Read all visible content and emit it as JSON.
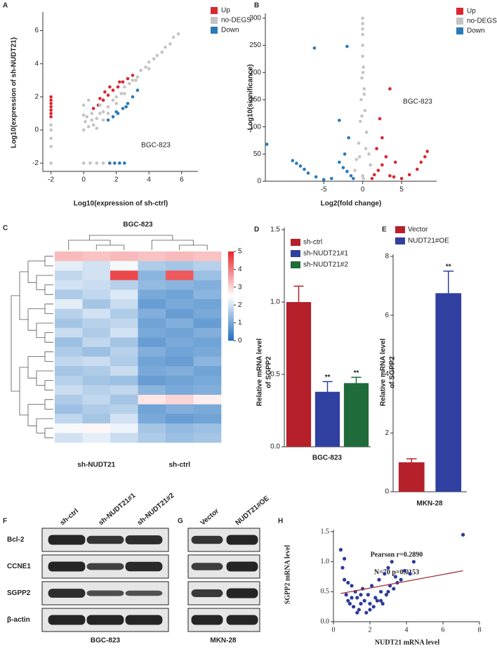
{
  "chart_data": [
    {
      "type": "scatter",
      "panel": "A",
      "xlabel": "Log10(expression of sh-ctrl)",
      "ylabel": "Log10(expression of sh-NUDT21)",
      "annotations": [
        "BGC-823"
      ],
      "xlim": [
        -2.5,
        7
      ],
      "ylim": [
        -2.5,
        7
      ],
      "xticks": [
        -2,
        0,
        2,
        4,
        6
      ],
      "yticks": [
        -2,
        0,
        2,
        4,
        6
      ],
      "series": [
        {
          "name": "Up",
          "color": "#d9272e",
          "x": [
            -2,
            -2,
            -2,
            -2,
            -2,
            -2,
            -2,
            0.6,
            0.9,
            1.2,
            1.5,
            1.8,
            2.1,
            2.4,
            2.7,
            3.0,
            1.0,
            1.6,
            2.2,
            1.3
          ],
          "values": [
            0.8,
            1.0,
            1.2,
            1.4,
            1.6,
            1.8,
            2.0,
            1.3,
            1.5,
            1.8,
            2.1,
            2.4,
            2.6,
            2.9,
            3.1,
            3.3,
            1.9,
            2.6,
            2.9,
            2.3
          ]
        },
        {
          "name": "no-DEGS",
          "color": "#c4c4c4",
          "x": [
            0,
            0.3,
            0.5,
            0.8,
            1,
            1.2,
            1.5,
            1.8,
            2,
            2.3,
            2.5,
            2.8,
            3,
            3.3,
            3.5,
            3.8,
            4,
            4.3,
            4.5,
            4.8,
            5,
            5.3,
            5.5,
            5.8,
            0.2,
            0.5,
            1,
            1.5,
            0.8,
            0.1,
            0,
            0,
            0.3,
            0.6,
            1.2,
            2.0,
            2.5,
            3.2,
            4.0,
            -2,
            -2,
            -2,
            -2,
            -2,
            0,
            0.4,
            0.8,
            1.2,
            1.6
          ],
          "values": [
            0,
            0.2,
            0.6,
            0.7,
            1,
            1.1,
            1.4,
            1.8,
            2,
            2.2,
            2.6,
            2.8,
            3,
            3.2,
            3.6,
            3.8,
            4.1,
            4.3,
            4.5,
            4.7,
            5,
            5.2,
            5.6,
            5.8,
            0.8,
            1.0,
            1.5,
            1.0,
            0.1,
            0.5,
            0.9,
            1.5,
            1.8,
            0.3,
            0.6,
            1.6,
            2.2,
            3.0,
            3.7,
            -2,
            -1,
            0,
            0.3,
            -0.5,
            -2,
            -2,
            -2,
            -2,
            -2
          ]
        },
        {
          "name": "Down",
          "color": "#2a7ab8",
          "x": [
            1.5,
            1.8,
            2.1,
            2.4,
            2.7,
            3.0,
            3.3,
            2.0,
            2.6,
            1.6,
            1.9,
            2.2,
            2.5
          ],
          "values": [
            0.6,
            0.8,
            1.0,
            1.3,
            1.6,
            2.0,
            2.4,
            1.1,
            1.4,
            -2,
            -2,
            -2,
            -2
          ]
        }
      ]
    },
    {
      "type": "scatter",
      "panel": "B",
      "xlabel": "Log2(fold change)",
      "ylabel": "-Log10(significance)",
      "annotations": [
        "BGC-823"
      ],
      "xlim": [
        -12.5,
        9.5
      ],
      "ylim": [
        0,
        305
      ],
      "xticks": [
        -5,
        0,
        5
      ],
      "yticks": [
        0,
        50,
        100,
        150,
        200,
        250,
        300
      ],
      "series": [
        {
          "name": "Up",
          "color": "#d9272e",
          "x": [
            1.2,
            1.5,
            2,
            2.5,
            3,
            3.5,
            4,
            5,
            6,
            7,
            7.5,
            8,
            8.3,
            2.2,
            3.5,
            2.5,
            1.8,
            4.2
          ],
          "values": [
            5,
            12,
            20,
            30,
            45,
            10,
            8,
            5,
            12,
            22,
            35,
            45,
            55,
            115,
            170,
            80,
            60,
            35
          ]
        },
        {
          "name": "no-DEGS",
          "color": "#c4c4c4",
          "x": [
            0,
            0,
            0,
            0,
            0,
            0.1,
            -0.1,
            0.2,
            -0.2,
            0.3,
            -0.3,
            0.5,
            -0.5,
            0.8,
            -0.8,
            1,
            -1,
            0,
            0.1,
            -0.1,
            0.2,
            0.4,
            -0.4,
            0,
            0.05
          ],
          "values": [
            300,
            290,
            270,
            250,
            230,
            210,
            190,
            170,
            150,
            130,
            110,
            90,
            70,
            50,
            40,
            30,
            20,
            10,
            5,
            120,
            160,
            60,
            45,
            280,
            200
          ]
        },
        {
          "name": "Down",
          "color": "#2a7ab8",
          "x": [
            -1.2,
            -1.5,
            -2,
            -2.5,
            -3,
            -4,
            -5,
            -6,
            -7,
            -7.5,
            -8,
            -8.5,
            -9,
            -6.2,
            -2,
            -3,
            -12.3,
            -2.3,
            -1.8
          ],
          "values": [
            5,
            10,
            18,
            25,
            35,
            5,
            3,
            8,
            15,
            22,
            28,
            33,
            38,
            245,
            248,
            112,
            68,
            50,
            80
          ]
        }
      ]
    },
    {
      "type": "heatmap",
      "panel": "C",
      "title": "BGC-823",
      "groups": [
        "sh-NUDT21",
        "sh-ctrl"
      ],
      "clim": [
        0,
        5
      ],
      "cticks": [
        0,
        1,
        2,
        3,
        4,
        5
      ],
      "colors": [
        "#1f6fbf",
        "#ffffff",
        "#e8262a"
      ],
      "values": [
        [
          3.3,
          3.2,
          3.3,
          3.2,
          3.3,
          3.2
        ],
        [
          2.2,
          2.0,
          2.4,
          1.6,
          1.5,
          1.7
        ],
        [
          1.8,
          2.0,
          4.6,
          1.2,
          4.4,
          1.4
        ],
        [
          2.0,
          1.9,
          1.7,
          1.3,
          1.2,
          1.1
        ],
        [
          1.6,
          1.8,
          2.1,
          1.0,
          0.9,
          1.2
        ],
        [
          2.2,
          1.5,
          1.9,
          0.8,
          1.0,
          0.9
        ],
        [
          1.7,
          2.0,
          1.6,
          1.1,
          0.8,
          1.0
        ],
        [
          1.5,
          1.7,
          1.8,
          0.9,
          1.1,
          0.8
        ],
        [
          1.9,
          1.6,
          2.0,
          1.0,
          0.9,
          1.1
        ],
        [
          1.4,
          1.8,
          1.5,
          0.8,
          1.0,
          0.9
        ],
        [
          1.6,
          1.4,
          1.7,
          1.1,
          0.9,
          1.0
        ],
        [
          1.8,
          1.9,
          1.6,
          0.9,
          0.8,
          1.2
        ],
        [
          1.5,
          1.6,
          1.9,
          1.0,
          1.1,
          0.9
        ],
        [
          1.7,
          1.5,
          1.4,
          0.8,
          0.9,
          1.0
        ],
        [
          1.9,
          1.7,
          1.8,
          1.2,
          1.0,
          1.1
        ],
        [
          1.6,
          1.8,
          1.5,
          2.8,
          3.0,
          2.7
        ],
        [
          1.4,
          1.6,
          1.7,
          0.9,
          1.1,
          1.0
        ],
        [
          1.8,
          1.5,
          2.0,
          1.0,
          0.8,
          0.9
        ],
        [
          2.4,
          2.6,
          2.3,
          1.5,
          1.3,
          1.4
        ],
        [
          2.0,
          2.2,
          1.9,
          1.6,
          1.4,
          1.5
        ]
      ]
    },
    {
      "type": "bar",
      "panel": "D",
      "xlabel": "BGC-823",
      "ylabel": [
        "Relative mRNA level",
        "of SGPP2"
      ],
      "categories": [
        "sh-ctrl",
        "sh-NUDT21#1",
        "sh-NUDT21#2"
      ],
      "values": [
        1.0,
        0.38,
        0.44
      ],
      "errors": [
        0.11,
        0.07,
        0.04
      ],
      "colors": [
        "#b5202a",
        "#3040a0",
        "#1f6b3a"
      ],
      "significance": [
        null,
        "**",
        "**"
      ],
      "ylim": [
        0,
        1.5
      ],
      "yticks": [
        {
          "value": 0,
          "label": "0.0"
        },
        0.5,
        {
          "value": 1,
          "label": "1.0"
        },
        1.5
      ]
    },
    {
      "type": "bar",
      "panel": "E",
      "xlabel": "MKN-28",
      "ylabel": [
        "Relative mRNA level",
        "of SGPP2"
      ],
      "categories": [
        "Vector",
        "NUDT21#OE"
      ],
      "values": [
        1.0,
        6.75
      ],
      "errors": [
        0.12,
        0.75
      ],
      "colors": [
        "#b5202a",
        "#3040a0"
      ],
      "significance": [
        null,
        "**"
      ],
      "ylim": [
        0,
        8
      ],
      "yticks": [
        0,
        2,
        4,
        6,
        8
      ]
    },
    {
      "type": "scatter",
      "panel": "H",
      "xlabel": "NUDT21 mRNA level",
      "ylabel": "SGPP2 mRNA level",
      "annotations": [
        "Pearson r=0.2890",
        "N=70   p=0.0153"
      ],
      "xlim": [
        0,
        8
      ],
      "ylim": [
        0,
        1.5
      ],
      "xticks": [
        0,
        2,
        4,
        6,
        8
      ],
      "yticks": [
        {
          "value": 0,
          "label": "0.0"
        },
        0.5,
        {
          "value": 1,
          "label": "1.0"
        },
        1.5
      ],
      "fit_line": {
        "color": "#a0303a",
        "x": [
          0.4,
          7.1
        ],
        "values": [
          0.47,
          0.85
        ]
      },
      "series": [
        {
          "color": "#2b3a9a",
          "x": [
            0.4,
            0.5,
            0.6,
            0.7,
            0.8,
            0.9,
            1.0,
            1.1,
            1.2,
            1.3,
            1.4,
            1.5,
            1.6,
            1.7,
            1.8,
            1.9,
            2.0,
            2.1,
            2.2,
            2.3,
            2.4,
            2.5,
            2.6,
            2.7,
            2.8,
            2.9,
            3.0,
            3.1,
            3.2,
            3.3,
            3.4,
            3.5,
            3.7,
            3.9,
            4.2,
            4.4,
            0.6,
            1.0,
            1.5,
            2.0,
            2.6,
            3.0,
            0.8,
            1.3,
            7.1
          ],
          "values": [
            1.2,
            0.9,
            1.05,
            0.45,
            0.35,
            0.3,
            0.6,
            0.25,
            0.5,
            0.4,
            0.2,
            0.3,
            0.55,
            0.35,
            0.15,
            0.45,
            0.3,
            0.6,
            0.25,
            0.4,
            0.35,
            0.7,
            0.5,
            0.3,
            0.8,
            0.45,
            0.9,
            0.6,
            1.0,
            0.55,
            0.75,
            0.65,
            0.7,
            0.85,
            0.8,
            1.0,
            0.7,
            0.4,
            0.45,
            0.2,
            0.35,
            0.5,
            0.65,
            0.15,
            1.45
          ]
        }
      ]
    }
  ],
  "blots": [
    {
      "panel": "F",
      "lanes": [
        "sh-ctrl",
        "sh-NUDT21#1",
        "sh-NUDT21#2"
      ],
      "rows": [
        "Bcl-2",
        "CCNE1",
        "SGPP2",
        "β-actin"
      ],
      "caption": "BGC-823"
    },
    {
      "panel": "G",
      "lanes": [
        "Vector",
        "NUDT21#OE"
      ],
      "caption": "MKN-28"
    }
  ]
}
